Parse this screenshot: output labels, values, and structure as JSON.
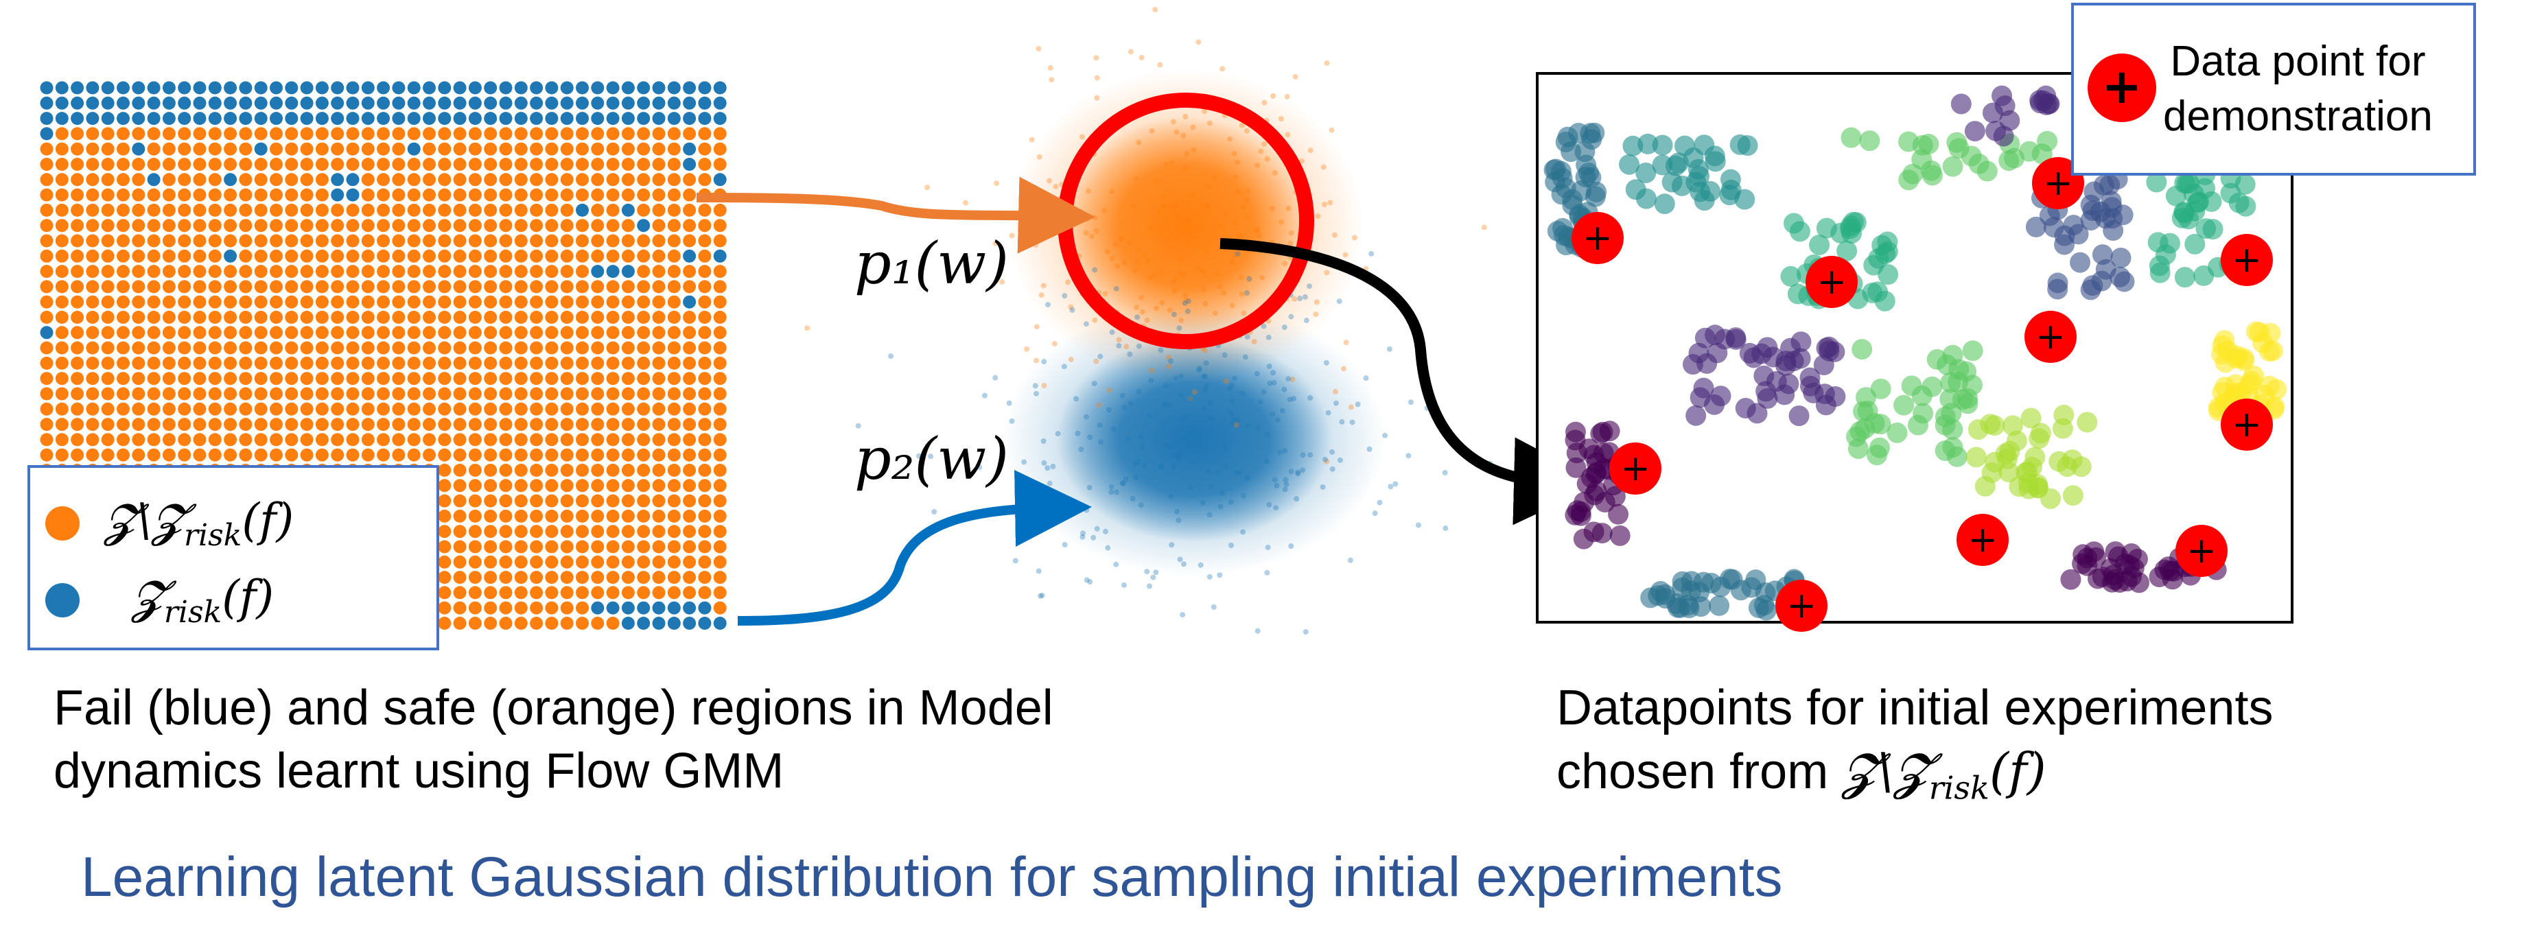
{
  "colors": {
    "safe": "#ff7f0e",
    "fail": "#1f77b4",
    "highlight": "#ff0000",
    "arrow_orange": "#ed7d31",
    "arrow_blue": "#0070c0",
    "title": "#2f5597",
    "legend_border": "#4472c4"
  },
  "grid": {
    "rows": 36,
    "cols": 45,
    "fail_cells": [
      [
        0,
        0
      ],
      [
        0,
        1
      ],
      [
        0,
        2
      ],
      [
        0,
        3
      ],
      [
        0,
        4
      ],
      [
        0,
        5
      ],
      [
        0,
        6
      ],
      [
        0,
        7
      ],
      [
        0,
        8
      ],
      [
        0,
        9
      ],
      [
        0,
        10
      ],
      [
        0,
        11
      ],
      [
        0,
        12
      ],
      [
        0,
        13
      ],
      [
        0,
        14
      ],
      [
        0,
        15
      ],
      [
        0,
        16
      ],
      [
        0,
        17
      ],
      [
        0,
        18
      ],
      [
        0,
        19
      ],
      [
        0,
        20
      ],
      [
        0,
        21
      ],
      [
        0,
        22
      ],
      [
        0,
        23
      ],
      [
        0,
        24
      ],
      [
        0,
        25
      ],
      [
        0,
        26
      ],
      [
        0,
        27
      ],
      [
        0,
        28
      ],
      [
        0,
        29
      ],
      [
        0,
        30
      ],
      [
        0,
        31
      ],
      [
        0,
        32
      ],
      [
        0,
        33
      ],
      [
        0,
        34
      ],
      [
        0,
        35
      ],
      [
        0,
        36
      ],
      [
        0,
        37
      ],
      [
        0,
        38
      ],
      [
        0,
        39
      ],
      [
        0,
        40
      ],
      [
        0,
        41
      ],
      [
        0,
        42
      ],
      [
        0,
        43
      ],
      [
        0,
        44
      ],
      [
        1,
        0
      ],
      [
        1,
        1
      ],
      [
        1,
        2
      ],
      [
        1,
        3
      ],
      [
        1,
        4
      ],
      [
        1,
        5
      ],
      [
        1,
        6
      ],
      [
        1,
        7
      ],
      [
        1,
        8
      ],
      [
        1,
        9
      ],
      [
        1,
        10
      ],
      [
        1,
        11
      ],
      [
        1,
        12
      ],
      [
        1,
        13
      ],
      [
        1,
        14
      ],
      [
        1,
        15
      ],
      [
        1,
        16
      ],
      [
        1,
        17
      ],
      [
        1,
        18
      ],
      [
        1,
        19
      ],
      [
        1,
        20
      ],
      [
        1,
        21
      ],
      [
        1,
        22
      ],
      [
        1,
        23
      ],
      [
        1,
        24
      ],
      [
        1,
        25
      ],
      [
        1,
        26
      ],
      [
        1,
        27
      ],
      [
        1,
        28
      ],
      [
        1,
        29
      ],
      [
        1,
        30
      ],
      [
        1,
        31
      ],
      [
        1,
        32
      ],
      [
        1,
        33
      ],
      [
        1,
        34
      ],
      [
        1,
        35
      ],
      [
        1,
        36
      ],
      [
        1,
        37
      ],
      [
        1,
        38
      ],
      [
        1,
        39
      ],
      [
        1,
        40
      ],
      [
        1,
        41
      ],
      [
        1,
        42
      ],
      [
        1,
        43
      ],
      [
        1,
        44
      ],
      [
        2,
        0
      ],
      [
        2,
        1
      ],
      [
        2,
        2
      ],
      [
        2,
        3
      ],
      [
        2,
        4
      ],
      [
        2,
        5
      ],
      [
        2,
        6
      ],
      [
        2,
        7
      ],
      [
        2,
        8
      ],
      [
        2,
        9
      ],
      [
        2,
        10
      ],
      [
        2,
        11
      ],
      [
        2,
        12
      ],
      [
        2,
        13
      ],
      [
        2,
        14
      ],
      [
        2,
        15
      ],
      [
        2,
        16
      ],
      [
        2,
        17
      ],
      [
        2,
        18
      ],
      [
        2,
        19
      ],
      [
        2,
        20
      ],
      [
        2,
        21
      ],
      [
        2,
        22
      ],
      [
        2,
        23
      ],
      [
        2,
        24
      ],
      [
        2,
        25
      ],
      [
        2,
        26
      ],
      [
        2,
        27
      ],
      [
        2,
        28
      ],
      [
        2,
        29
      ],
      [
        2,
        30
      ],
      [
        2,
        31
      ],
      [
        2,
        32
      ],
      [
        2,
        33
      ],
      [
        2,
        34
      ],
      [
        2,
        35
      ],
      [
        2,
        36
      ],
      [
        2,
        37
      ],
      [
        2,
        38
      ],
      [
        2,
        39
      ],
      [
        2,
        40
      ],
      [
        2,
        41
      ],
      [
        2,
        42
      ],
      [
        2,
        43
      ],
      [
        2,
        44
      ],
      [
        3,
        0
      ],
      [
        4,
        6
      ],
      [
        4,
        14
      ],
      [
        4,
        24
      ],
      [
        4,
        42
      ],
      [
        5,
        42
      ],
      [
        6,
        7
      ],
      [
        6,
        12
      ],
      [
        6,
        19
      ],
      [
        6,
        20
      ],
      [
        6,
        44
      ],
      [
        7,
        19
      ],
      [
        7,
        20
      ],
      [
        8,
        35
      ],
      [
        8,
        38
      ],
      [
        9,
        39
      ],
      [
        11,
        12
      ],
      [
        11,
        42
      ],
      [
        11,
        44
      ],
      [
        12,
        36
      ],
      [
        12,
        37
      ],
      [
        12,
        38
      ],
      [
        14,
        42
      ],
      [
        16,
        0
      ],
      [
        34,
        36
      ],
      [
        34,
        37
      ],
      [
        34,
        38
      ],
      [
        34,
        39
      ],
      [
        34,
        40
      ],
      [
        34,
        41
      ],
      [
        34,
        42
      ],
      [
        34,
        43
      ],
      [
        35,
        38
      ],
      [
        35,
        39
      ],
      [
        35,
        40
      ],
      [
        35,
        41
      ],
      [
        35,
        42
      ],
      [
        35,
        43
      ],
      [
        35,
        44
      ]
    ]
  },
  "legend": {
    "safe_label": "𝓩\\𝓩",
    "safe_sub": "risk",
    "safe_tail": "(f)",
    "fail_label": "𝓩",
    "fail_sub": "risk",
    "fail_tail": "(f)"
  },
  "gmm": {
    "p1_label": "p₁(w)",
    "p2_label": "p₂(w)"
  },
  "demo_legend": {
    "line1": "Data point for",
    "line2": "demonstration",
    "marker": "+"
  },
  "scatter": {
    "demo_points": [
      [
        0.08,
        0.3
      ],
      [
        0.39,
        0.38
      ],
      [
        0.69,
        0.2
      ],
      [
        0.68,
        0.48
      ],
      [
        0.94,
        0.34
      ],
      [
        0.94,
        0.64
      ],
      [
        0.13,
        0.72
      ],
      [
        0.59,
        0.85
      ],
      [
        0.88,
        0.87
      ],
      [
        0.35,
        0.97
      ]
    ]
  },
  "captions": {
    "left_line1": "Fail (blue) and safe (orange) regions in Model",
    "left_line2": "dynamics learnt using Flow GMM",
    "right_line1": "Datapoints for initial experiments",
    "right_line2_prefix": "chosen from ",
    "right_line2_math": "𝓩\\𝓩",
    "right_line2_sub": "risk",
    "right_line2_tail": "(f)",
    "title": "Learning latent Gaussian distribution for sampling initial experiments"
  }
}
